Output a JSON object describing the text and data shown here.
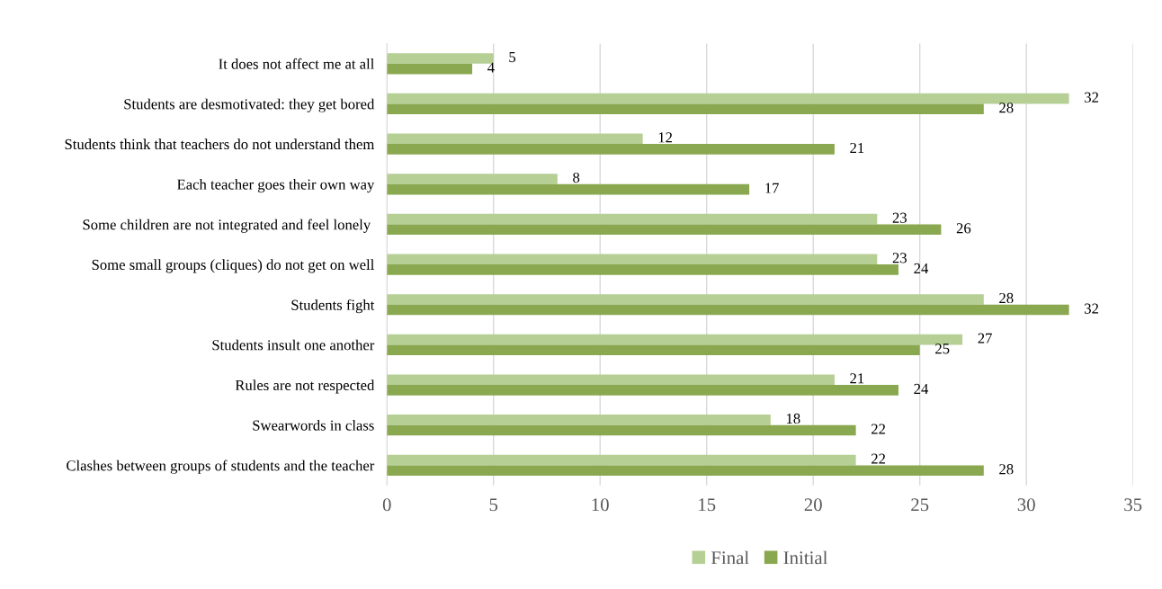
{
  "chart_data": {
    "type": "bar",
    "orientation": "horizontal",
    "categories": [
      "It does not affect me at all",
      "Students are desmotivated: they get bored",
      "Students think that teachers do not understand them",
      "Each teacher goes their own way",
      "Some children are not integrated and feel lonely ",
      "Some small groups (cliques) do not get on well",
      "Students fight",
      "Students insult one another",
      "Rules are not respected",
      "Swearwords in class",
      "Clashes between groups of students and the teacher"
    ],
    "series": [
      {
        "name": "Final",
        "color": "#b5cf95",
        "values": [
          5,
          32,
          12,
          8,
          23,
          23,
          28,
          27,
          21,
          18,
          22
        ]
      },
      {
        "name": "Initial",
        "color": "#8aa84f",
        "values": [
          4,
          28,
          21,
          17,
          26,
          24,
          32,
          25,
          24,
          22,
          28
        ]
      }
    ],
    "xlim": [
      0,
      35
    ],
    "xticks": [
      0,
      5,
      10,
      15,
      20,
      25,
      30,
      35
    ],
    "grid": "x",
    "legend": "bottom",
    "data_labels": true
  }
}
